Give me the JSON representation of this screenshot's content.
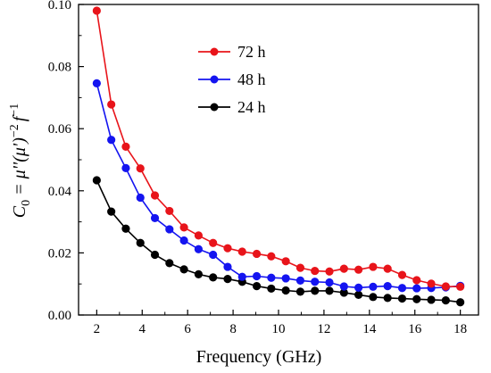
{
  "chart_data": {
    "type": "line",
    "title": "",
    "xlabel": "Frequency (GHz)",
    "ylabel": {
      "C": "C",
      "sub0": "0",
      "eq": " = μ''(μ')",
      "exp_neg2": "−2",
      "f": "f",
      "exp_neg1": "−1"
    },
    "xlim": [
      1.2,
      18.8
    ],
    "ylim": [
      0.0,
      0.1
    ],
    "xticks": [
      2,
      4,
      6,
      8,
      10,
      12,
      14,
      16,
      18
    ],
    "yticks": [
      0.0,
      0.02,
      0.04,
      0.06,
      0.08,
      0.1
    ],
    "xtick_labels": [
      "2",
      "4",
      "6",
      "8",
      "10",
      "12",
      "14",
      "16",
      "18"
    ],
    "ytick_labels": [
      "0.00",
      "0.02",
      "0.04",
      "0.06",
      "0.08",
      "0.10"
    ],
    "grid": false,
    "legend_position": "upper-center",
    "x": [
      2.0,
      2.64,
      3.28,
      3.92,
      4.56,
      5.2,
      5.84,
      6.48,
      7.12,
      7.76,
      8.4,
      9.04,
      9.68,
      10.32,
      10.96,
      11.6,
      12.24,
      12.88,
      13.52,
      14.16,
      14.8,
      15.44,
      16.08,
      16.72,
      17.36,
      18.0
    ],
    "series": [
      {
        "name": "72 h",
        "color": "#e8141a",
        "values": [
          0.098,
          0.0678,
          0.0542,
          0.0472,
          0.0385,
          0.0335,
          0.0282,
          0.0256,
          0.0232,
          0.0215,
          0.0204,
          0.0197,
          0.0189,
          0.0173,
          0.0152,
          0.0142,
          0.014,
          0.0149,
          0.0146,
          0.0155,
          0.0149,
          0.0129,
          0.0112,
          0.0101,
          0.0092,
          0.0091
        ]
      },
      {
        "name": "48 h",
        "color": "#1414f0",
        "values": [
          0.0746,
          0.0564,
          0.0473,
          0.0378,
          0.0312,
          0.0276,
          0.024,
          0.0212,
          0.0194,
          0.0155,
          0.0123,
          0.0125,
          0.012,
          0.0118,
          0.0111,
          0.0107,
          0.0105,
          0.0092,
          0.0088,
          0.0091,
          0.0093,
          0.0087,
          0.0086,
          0.0087,
          0.0089,
          0.0094
        ]
      },
      {
        "name": "24 h",
        "color": "#000000",
        "values": [
          0.0434,
          0.0333,
          0.0278,
          0.0232,
          0.0194,
          0.0167,
          0.0147,
          0.0131,
          0.0121,
          0.0116,
          0.0107,
          0.0093,
          0.0085,
          0.0079,
          0.0075,
          0.0078,
          0.0078,
          0.0072,
          0.0065,
          0.0058,
          0.0055,
          0.0053,
          0.0051,
          0.0049,
          0.0047,
          0.0041
        ]
      }
    ]
  }
}
